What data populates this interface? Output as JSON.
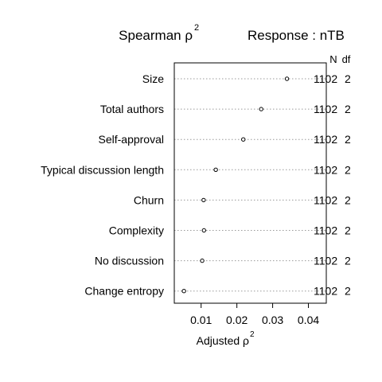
{
  "chart_data": {
    "type": "scatter",
    "title_main": "Spearman ρ",
    "title_sup": "2",
    "response_label": "Response : nTB",
    "column_headers": [
      "N",
      "df"
    ],
    "xlabel_main": "Adjusted ρ",
    "xlabel_sup": "2",
    "xlim": [
      0.0025,
      0.045
    ],
    "x_ticks": [
      "0.01",
      "0.02",
      "0.03",
      "0.04"
    ],
    "x_tick_values": [
      0.01,
      0.02,
      0.03,
      0.04
    ],
    "grid_rows": "dotted",
    "rows": [
      {
        "label": "Size",
        "value": 0.034,
        "N": "1102",
        "df": "2"
      },
      {
        "label": "Total authors",
        "value": 0.0268,
        "N": "1102",
        "df": "2"
      },
      {
        "label": "Self-approval",
        "value": 0.0218,
        "N": "1102",
        "df": "2"
      },
      {
        "label": "Typical discussion length",
        "value": 0.0141,
        "N": "1102",
        "df": "2"
      },
      {
        "label": "Churn",
        "value": 0.0107,
        "N": "1102",
        "df": "2"
      },
      {
        "label": "Complexity",
        "value": 0.0108,
        "N": "1102",
        "df": "2"
      },
      {
        "label": "No discussion",
        "value": 0.0103,
        "N": "1102",
        "df": "2"
      },
      {
        "label": "Change entropy",
        "value": 0.0052,
        "N": "1102",
        "df": "2"
      }
    ]
  }
}
